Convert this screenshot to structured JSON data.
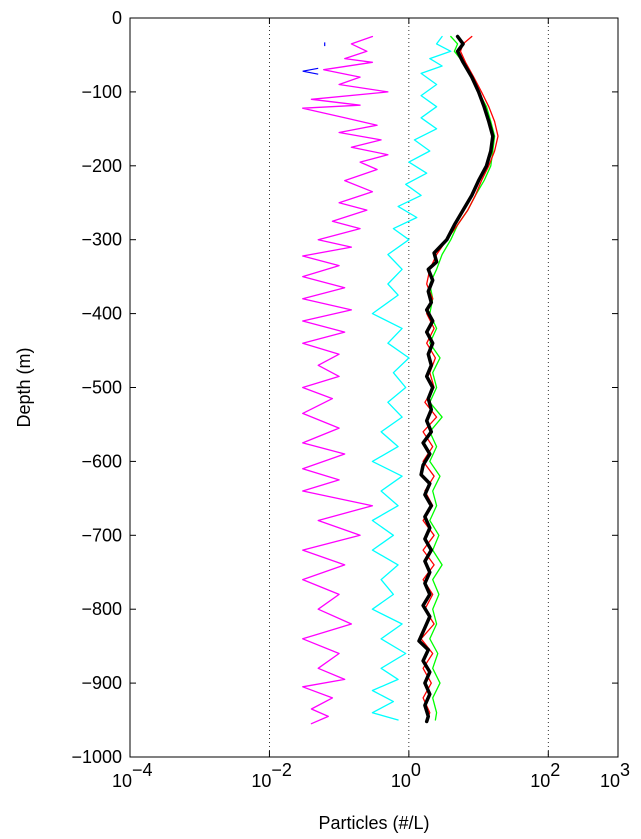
{
  "chart_data": {
    "type": "line",
    "xlabel": "Particles (#/L)",
    "ylabel": "Depth (m)",
    "x_scale": "log",
    "xlim": [
      0.0001,
      1000
    ],
    "ylim": [
      -1000,
      0
    ],
    "grid_x": "dotted",
    "x_ticks": [
      {
        "value": 0.0001,
        "base": "10",
        "exp": "−4"
      },
      {
        "value": 0.01,
        "base": "10",
        "exp": "−2"
      },
      {
        "value": 1,
        "base": "10",
        "exp": "0"
      },
      {
        "value": 100,
        "base": "10",
        "exp": "2"
      },
      {
        "value": 1000,
        "base": "10",
        "exp": "3"
      }
    ],
    "y_ticks": [
      {
        "value": 0,
        "label": "0"
      },
      {
        "value": -100,
        "label": "−100"
      },
      {
        "value": -200,
        "label": "−200"
      },
      {
        "value": -300,
        "label": "−300"
      },
      {
        "value": -400,
        "label": "−400"
      },
      {
        "value": -500,
        "label": "−500"
      },
      {
        "value": -600,
        "label": "−600"
      },
      {
        "value": -700,
        "label": "−700"
      },
      {
        "value": -800,
        "label": "−800"
      },
      {
        "value": -900,
        "label": "−900"
      },
      {
        "value": -1000,
        "label": "−1000"
      }
    ],
    "series": [
      {
        "color": "#ff00ff",
        "width": 1.3,
        "points": [
          [
            0.3,
            -25
          ],
          [
            0.15,
            -35
          ],
          [
            0.25,
            -45
          ],
          [
            0.12,
            -55
          ],
          [
            0.3,
            -60
          ],
          [
            0.06,
            -70
          ],
          [
            0.2,
            -80
          ],
          [
            0.1,
            -90
          ],
          [
            0.5,
            -100
          ],
          [
            0.04,
            -110
          ],
          [
            0.2,
            -118
          ],
          [
            0.03,
            -122
          ],
          [
            0.12,
            -135
          ],
          [
            0.35,
            -145
          ],
          [
            0.1,
            -155
          ],
          [
            0.4,
            -165
          ],
          [
            0.15,
            -175
          ],
          [
            0.5,
            -185
          ],
          [
            0.2,
            -195
          ],
          [
            0.35,
            -205
          ],
          [
            0.12,
            -220
          ],
          [
            0.3,
            -235
          ],
          [
            0.1,
            -250
          ],
          [
            0.25,
            -260
          ],
          [
            0.08,
            -275
          ],
          [
            0.2,
            -285
          ],
          [
            0.05,
            -300
          ],
          [
            0.15,
            -310
          ],
          [
            0.03,
            -322
          ],
          [
            0.1,
            -335
          ],
          [
            0.03,
            -350
          ],
          [
            0.12,
            -365
          ],
          [
            0.03,
            -380
          ],
          [
            0.15,
            -395
          ],
          [
            0.03,
            -410
          ],
          [
            0.12,
            -425
          ],
          [
            0.03,
            -440
          ],
          [
            0.1,
            -455
          ],
          [
            0.05,
            -470
          ],
          [
            0.1,
            -485
          ],
          [
            0.03,
            -500
          ],
          [
            0.08,
            -515
          ],
          [
            0.03,
            -535
          ],
          [
            0.1,
            -555
          ],
          [
            0.03,
            -575
          ],
          [
            0.12,
            -590
          ],
          [
            0.03,
            -610
          ],
          [
            0.1,
            -625
          ],
          [
            0.03,
            -640
          ],
          [
            0.3,
            -660
          ],
          [
            0.05,
            -680
          ],
          [
            0.2,
            -700
          ],
          [
            0.03,
            -720
          ],
          [
            0.12,
            -740
          ],
          [
            0.03,
            -760
          ],
          [
            0.1,
            -780
          ],
          [
            0.05,
            -800
          ],
          [
            0.15,
            -820
          ],
          [
            0.03,
            -840
          ],
          [
            0.1,
            -860
          ],
          [
            0.05,
            -880
          ],
          [
            0.12,
            -895
          ],
          [
            0.03,
            -905
          ],
          [
            0.08,
            -920
          ],
          [
            0.04,
            -935
          ],
          [
            0.07,
            -945
          ],
          [
            0.04,
            -955
          ]
        ],
        "extra": [
          {
            "points": [
              [
                0.05,
                -68
              ],
              [
                0.03,
                -72
              ],
              [
                0.05,
                -76
              ]
            ],
            "color": "#0000ff"
          },
          {
            "points": [
              [
                0.062,
                -33
              ],
              [
                0.062,
                -38
              ]
            ],
            "color": "#0000ff"
          }
        ]
      },
      {
        "color": "#00ffff",
        "width": 1.3,
        "points": [
          [
            3,
            -25
          ],
          [
            2.5,
            -35
          ],
          [
            4,
            -45
          ],
          [
            2,
            -55
          ],
          [
            3,
            -65
          ],
          [
            1.5,
            -75
          ],
          [
            2.5,
            -90
          ],
          [
            1.5,
            -105
          ],
          [
            2.5,
            -120
          ],
          [
            1.5,
            -135
          ],
          [
            2.5,
            -150
          ],
          [
            1.2,
            -165
          ],
          [
            2,
            -180
          ],
          [
            1,
            -195
          ],
          [
            1.8,
            -210
          ],
          [
            0.9,
            -225
          ],
          [
            1.5,
            -240
          ],
          [
            0.7,
            -255
          ],
          [
            1.3,
            -270
          ],
          [
            0.6,
            -285
          ],
          [
            1,
            -300
          ],
          [
            0.5,
            -320
          ],
          [
            0.8,
            -340
          ],
          [
            0.5,
            -360
          ],
          [
            0.7,
            -375
          ],
          [
            0.3,
            -400
          ],
          [
            0.8,
            -420
          ],
          [
            0.5,
            -440
          ],
          [
            1,
            -460
          ],
          [
            0.6,
            -480
          ],
          [
            0.9,
            -500
          ],
          [
            0.5,
            -520
          ],
          [
            0.8,
            -540
          ],
          [
            0.4,
            -560
          ],
          [
            0.7,
            -580
          ],
          [
            0.3,
            -600
          ],
          [
            0.8,
            -620
          ],
          [
            0.4,
            -640
          ],
          [
            0.7,
            -660
          ],
          [
            0.3,
            -680
          ],
          [
            0.6,
            -700
          ],
          [
            0.3,
            -720
          ],
          [
            0.7,
            -740
          ],
          [
            0.4,
            -760
          ],
          [
            0.6,
            -780
          ],
          [
            0.3,
            -800
          ],
          [
            0.8,
            -820
          ],
          [
            0.4,
            -840
          ],
          [
            0.9,
            -860
          ],
          [
            0.4,
            -880
          ],
          [
            0.7,
            -895
          ],
          [
            0.3,
            -910
          ],
          [
            0.6,
            -925
          ],
          [
            0.3,
            -940
          ],
          [
            0.7,
            -950
          ]
        ]
      },
      {
        "color": "#00ff00",
        "width": 1.3,
        "points": [
          [
            4,
            -25
          ],
          [
            5,
            -35
          ],
          [
            4.5,
            -45
          ],
          [
            6,
            -60
          ],
          [
            8,
            -80
          ],
          [
            10,
            -100
          ],
          [
            13,
            -120
          ],
          [
            15,
            -140
          ],
          [
            17,
            -160
          ],
          [
            16,
            -180
          ],
          [
            15,
            -200
          ],
          [
            12,
            -220
          ],
          [
            9,
            -240
          ],
          [
            7,
            -260
          ],
          [
            5,
            -280
          ],
          [
            4,
            -300
          ],
          [
            3,
            -320
          ],
          [
            2.5,
            -340
          ],
          [
            2,
            -360
          ],
          [
            2.2,
            -380
          ],
          [
            2,
            -400
          ],
          [
            2.5,
            -420
          ],
          [
            2,
            -440
          ],
          [
            2.8,
            -460
          ],
          [
            2.2,
            -480
          ],
          [
            2.5,
            -500
          ],
          [
            2,
            -520
          ],
          [
            3,
            -540
          ],
          [
            2,
            -560
          ],
          [
            2.5,
            -580
          ],
          [
            2,
            -600
          ],
          [
            2.8,
            -620
          ],
          [
            2.2,
            -640
          ],
          [
            2.5,
            -660
          ],
          [
            2,
            -680
          ],
          [
            2.7,
            -700
          ],
          [
            2.2,
            -720
          ],
          [
            3,
            -740
          ],
          [
            2.2,
            -760
          ],
          [
            2.7,
            -780
          ],
          [
            2.2,
            -800
          ],
          [
            2.5,
            -820
          ],
          [
            2,
            -840
          ],
          [
            2.6,
            -860
          ],
          [
            2.2,
            -880
          ],
          [
            2.8,
            -900
          ],
          [
            2.2,
            -920
          ],
          [
            2.5,
            -940
          ],
          [
            2.4,
            -950
          ]
        ]
      },
      {
        "color": "#ff0000",
        "width": 1.3,
        "points": [
          [
            8,
            -25
          ],
          [
            6,
            -35
          ],
          [
            5.5,
            -45
          ],
          [
            6.5,
            -60
          ],
          [
            8.5,
            -80
          ],
          [
            11,
            -100
          ],
          [
            14,
            -120
          ],
          [
            17,
            -140
          ],
          [
            19,
            -160
          ],
          [
            17,
            -180
          ],
          [
            14,
            -200
          ],
          [
            11,
            -220
          ],
          [
            9,
            -240
          ],
          [
            7,
            -260
          ],
          [
            5,
            -280
          ],
          [
            3.5,
            -300
          ],
          [
            2.5,
            -320
          ],
          [
            2,
            -340
          ],
          [
            1.8,
            -360
          ],
          [
            2.2,
            -380
          ],
          [
            1.8,
            -400
          ],
          [
            2.3,
            -420
          ],
          [
            1.8,
            -440
          ],
          [
            2.4,
            -460
          ],
          [
            2,
            -480
          ],
          [
            2.3,
            -500
          ],
          [
            1.7,
            -520
          ],
          [
            2.5,
            -540
          ],
          [
            1.6,
            -560
          ],
          [
            2.2,
            -580
          ],
          [
            1.6,
            -600
          ],
          [
            2.3,
            -620
          ],
          [
            1.7,
            -640
          ],
          [
            2.2,
            -660
          ],
          [
            1.6,
            -680
          ],
          [
            2.3,
            -700
          ],
          [
            1.6,
            -720
          ],
          [
            2.3,
            -740
          ],
          [
            1.6,
            -760
          ],
          [
            2.2,
            -780
          ],
          [
            1.7,
            -800
          ],
          [
            2.3,
            -820
          ],
          [
            1.5,
            -840
          ],
          [
            2.2,
            -860
          ],
          [
            1.6,
            -880
          ],
          [
            2.1,
            -900
          ],
          [
            1.6,
            -920
          ],
          [
            2,
            -940
          ],
          [
            1.8,
            -950
          ]
        ]
      },
      {
        "color": "#000000",
        "width": 3.5,
        "points": [
          [
            5,
            -25
          ],
          [
            6,
            -35
          ],
          [
            5,
            -45
          ],
          [
            6,
            -60
          ],
          [
            8,
            -80
          ],
          [
            10,
            -100
          ],
          [
            12,
            -120
          ],
          [
            14,
            -140
          ],
          [
            16,
            -160
          ],
          [
            15,
            -180
          ],
          [
            13,
            -200
          ],
          [
            10,
            -220
          ],
          [
            8,
            -240
          ],
          [
            6,
            -260
          ],
          [
            4.5,
            -280
          ],
          [
            3.5,
            -300
          ],
          [
            2.3,
            -318
          ],
          [
            2.5,
            -330
          ],
          [
            1.9,
            -340
          ],
          [
            2.2,
            -355
          ],
          [
            1.9,
            -370
          ],
          [
            2.1,
            -385
          ],
          [
            1.8,
            -395
          ],
          [
            2.2,
            -410
          ],
          [
            1.8,
            -425
          ],
          [
            2.2,
            -440
          ],
          [
            1.9,
            -455
          ],
          [
            2.1,
            -470
          ],
          [
            1.8,
            -485
          ],
          [
            2.2,
            -500
          ],
          [
            1.9,
            -515
          ],
          [
            2.1,
            -530
          ],
          [
            1.8,
            -545
          ],
          [
            2.1,
            -560
          ],
          [
            1.6,
            -575
          ],
          [
            2,
            -590
          ],
          [
            1.6,
            -605
          ],
          [
            1.5,
            -618
          ],
          [
            2,
            -630
          ],
          [
            1.7,
            -645
          ],
          [
            2.1,
            -660
          ],
          [
            1.7,
            -675
          ],
          [
            2,
            -690
          ],
          [
            1.7,
            -705
          ],
          [
            2.1,
            -720
          ],
          [
            1.7,
            -735
          ],
          [
            2,
            -750
          ],
          [
            1.7,
            -765
          ],
          [
            2,
            -780
          ],
          [
            1.6,
            -795
          ],
          [
            2,
            -810
          ],
          [
            1.7,
            -825
          ],
          [
            1.4,
            -843
          ],
          [
            1.9,
            -855
          ],
          [
            1.6,
            -870
          ],
          [
            2,
            -885
          ],
          [
            1.7,
            -900
          ],
          [
            2,
            -915
          ],
          [
            1.7,
            -930
          ],
          [
            1.9,
            -945
          ],
          [
            1.8,
            -952
          ]
        ]
      }
    ]
  }
}
